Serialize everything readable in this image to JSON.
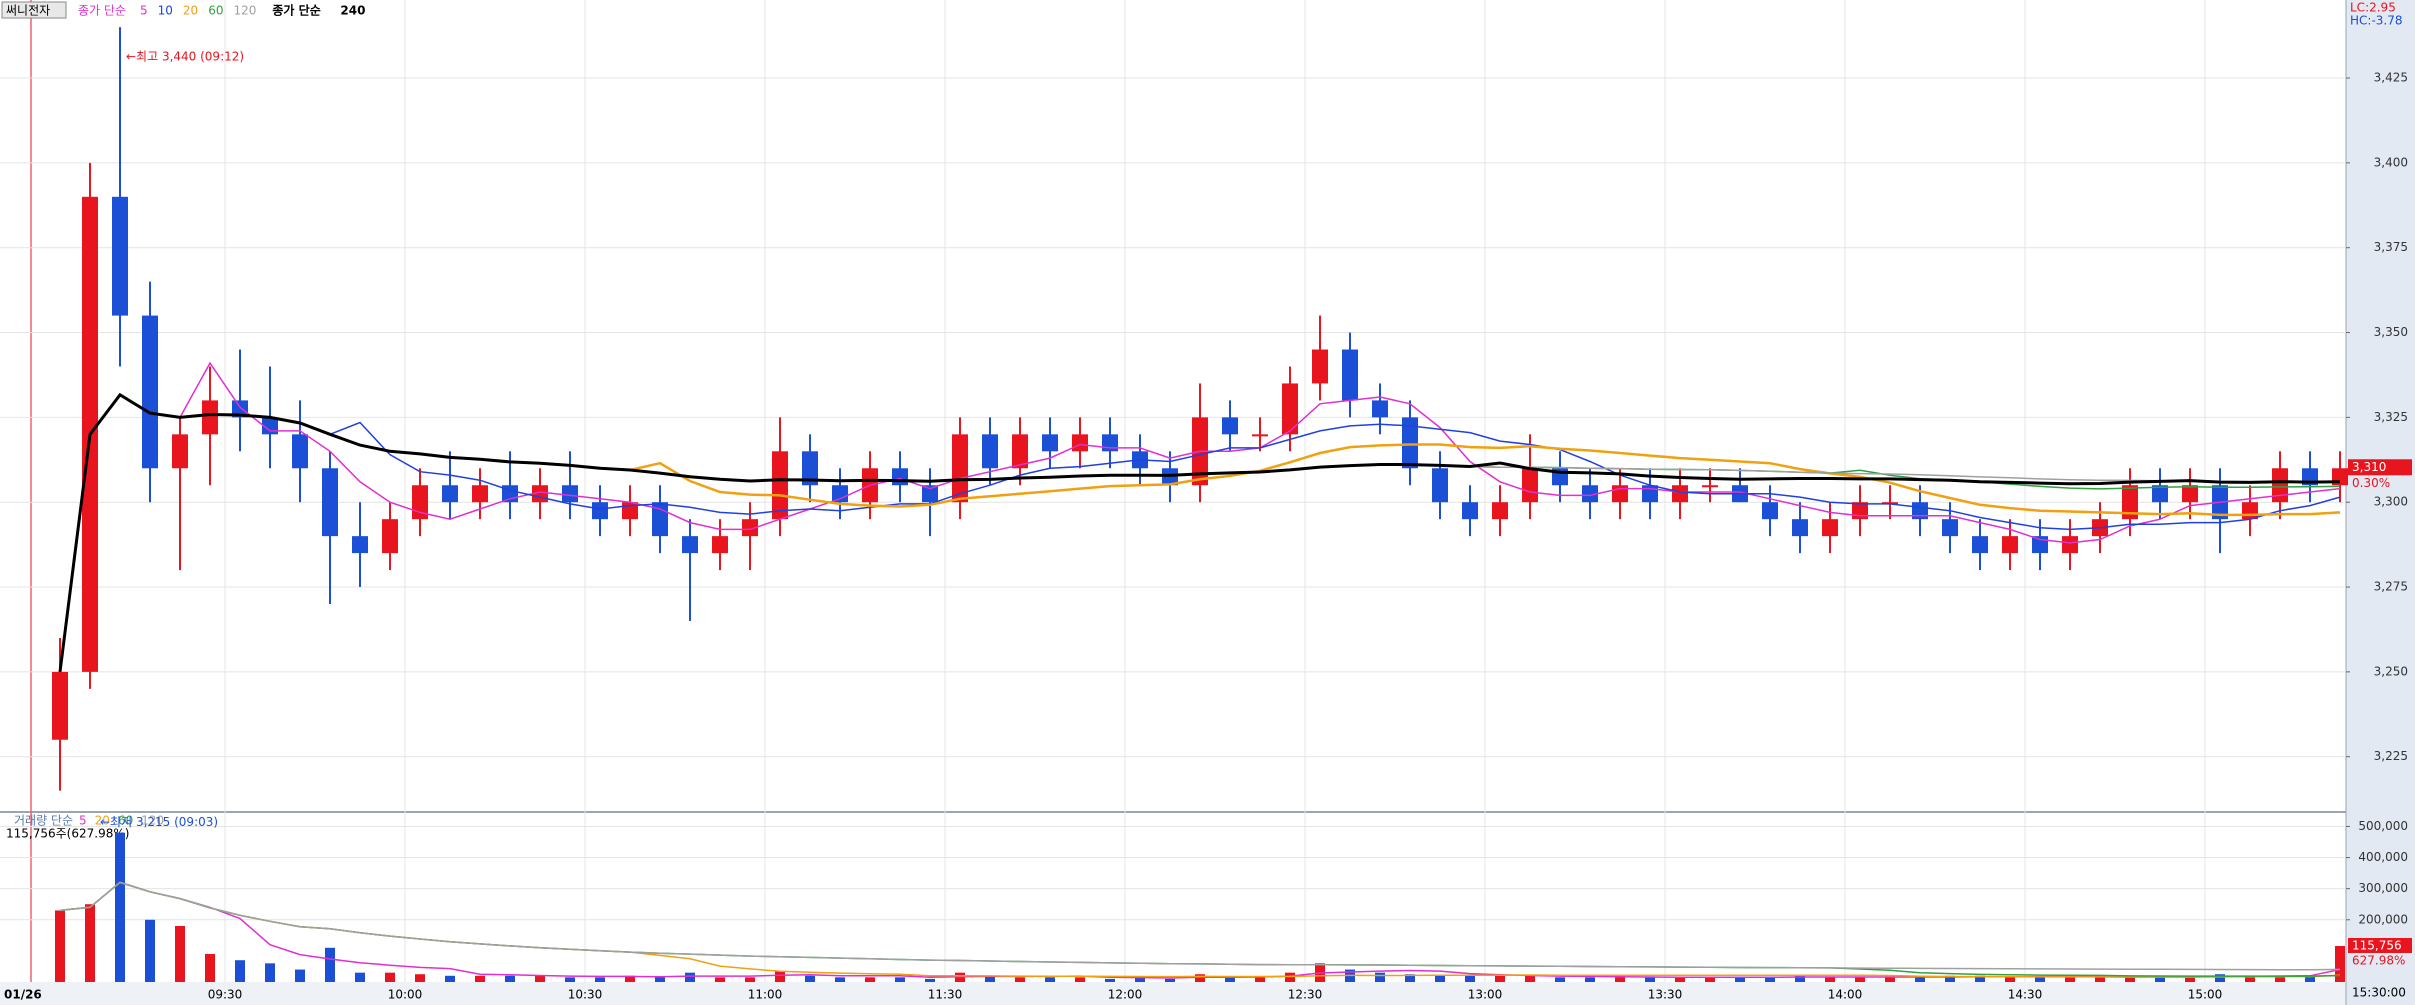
{
  "chart_data": {
    "type": "candlestick",
    "title": "써니전자",
    "date": "01/26",
    "categories": [
      "09:00",
      "09:05",
      "09:10",
      "09:15",
      "09:20",
      "09:25",
      "09:30",
      "09:35",
      "09:40",
      "09:45",
      "09:50",
      "09:55",
      "10:00",
      "10:05",
      "10:10",
      "10:15",
      "10:20",
      "10:25",
      "10:30",
      "10:35",
      "10:40",
      "10:45",
      "10:50",
      "10:55",
      "11:00",
      "11:05",
      "11:10",
      "11:15",
      "11:20",
      "11:25",
      "11:30",
      "11:35",
      "11:40",
      "11:45",
      "11:50",
      "11:55",
      "12:00",
      "12:05",
      "12:10",
      "12:15",
      "12:20",
      "12:25",
      "12:30",
      "12:35",
      "12:40",
      "12:45",
      "12:50",
      "12:55",
      "13:00",
      "13:05",
      "13:10",
      "13:15",
      "13:20",
      "13:25",
      "13:30",
      "13:35",
      "13:40",
      "13:45",
      "13:50",
      "13:55",
      "14:00",
      "14:05",
      "14:10",
      "14:15",
      "14:20",
      "14:25",
      "14:30",
      "14:35",
      "14:40",
      "14:45",
      "14:50",
      "14:55",
      "15:00",
      "15:05",
      "15:10",
      "15:15",
      "15:20"
    ],
    "open": [
      3230,
      3250,
      3390,
      3355,
      3310,
      3320,
      3330,
      3325,
      3320,
      3310,
      3290,
      3285,
      3295,
      3305,
      3300,
      3305,
      3300,
      3305,
      3300,
      3295,
      3300,
      3290,
      3285,
      3290,
      3295,
      3315,
      3305,
      3300,
      3310,
      3305,
      3300,
      3320,
      3310,
      3320,
      3315,
      3320,
      3315,
      3310,
      3305,
      3325,
      3320,
      3320,
      3335,
      3345,
      3330,
      3325,
      3310,
      3300,
      3295,
      3300,
      3310,
      3305,
      3300,
      3305,
      3300,
      3305,
      3305,
      3300,
      3295,
      3290,
      3295,
      3300,
      3300,
      3295,
      3290,
      3285,
      3290,
      3285,
      3290,
      3295,
      3305,
      3300,
      3305,
      3295,
      3300,
      3310,
      3305
    ],
    "high": [
      3260,
      3400,
      3440,
      3365,
      3325,
      3340,
      3345,
      3340,
      3330,
      3315,
      3300,
      3300,
      3310,
      3315,
      3310,
      3315,
      3310,
      3315,
      3305,
      3305,
      3305,
      3295,
      3295,
      3300,
      3325,
      3320,
      3310,
      3315,
      3315,
      3310,
      3325,
      3325,
      3325,
      3325,
      3325,
      3325,
      3320,
      3315,
      3335,
      3330,
      3325,
      3340,
      3355,
      3350,
      3335,
      3330,
      3315,
      3305,
      3305,
      3320,
      3315,
      3310,
      3310,
      3310,
      3310,
      3310,
      3310,
      3305,
      3300,
      3300,
      3305,
      3305,
      3305,
      3300,
      3295,
      3295,
      3295,
      3295,
      3300,
      3310,
      3310,
      3310,
      3310,
      3305,
      3315,
      3315,
      3315
    ],
    "low": [
      3215,
      3245,
      3340,
      3300,
      3280,
      3305,
      3315,
      3310,
      3300,
      3270,
      3275,
      3280,
      3290,
      3295,
      3295,
      3295,
      3295,
      3295,
      3290,
      3290,
      3285,
      3265,
      3280,
      3280,
      3290,
      3300,
      3295,
      3295,
      3300,
      3290,
      3295,
      3305,
      3305,
      3310,
      3310,
      3310,
      3305,
      3300,
      3300,
      3315,
      3315,
      3315,
      3330,
      3325,
      3320,
      3305,
      3295,
      3290,
      3290,
      3295,
      3300,
      3295,
      3295,
      3295,
      3295,
      3300,
      3300,
      3290,
      3285,
      3285,
      3290,
      3295,
      3290,
      3285,
      3280,
      3280,
      3280,
      3280,
      3285,
      3290,
      3295,
      3295,
      3285,
      3290,
      3295,
      3300,
      3300
    ],
    "close": [
      3250,
      3390,
      3355,
      3310,
      3320,
      3330,
      3325,
      3320,
      3310,
      3290,
      3285,
      3295,
      3305,
      3300,
      3305,
      3300,
      3305,
      3300,
      3295,
      3300,
      3290,
      3285,
      3290,
      3295,
      3315,
      3305,
      3300,
      3310,
      3305,
      3300,
      3320,
      3310,
      3320,
      3315,
      3320,
      3315,
      3310,
      3305,
      3325,
      3320,
      3320,
      3335,
      3345,
      3330,
      3325,
      3310,
      3300,
      3295,
      3300,
      3310,
      3305,
      3300,
      3305,
      3300,
      3305,
      3305,
      3300,
      3295,
      3290,
      3295,
      3300,
      3300,
      3295,
      3290,
      3285,
      3290,
      3285,
      3290,
      3295,
      3305,
      3300,
      3305,
      3295,
      3300,
      3310,
      3305,
      3310
    ],
    "up_color": "#e8141e",
    "down_color": "#1a4fd6",
    "ylim": [
      3209,
      3448
    ],
    "yticks": [
      {
        "value": 3225,
        "label": "3,225"
      },
      {
        "value": 3250,
        "label": "3,250"
      },
      {
        "value": 3275,
        "label": "3,275"
      },
      {
        "value": 3300,
        "label": "3,300"
      },
      {
        "value": 3325,
        "label": "3,325"
      },
      {
        "value": 3350,
        "label": "3,350"
      },
      {
        "value": 3375,
        "label": "3,375"
      },
      {
        "value": 3400,
        "label": "3,400"
      },
      {
        "value": 3425,
        "label": "3,425"
      }
    ],
    "grid": true,
    "moving_averages": {
      "label": "종가 단순",
      "periods": [
        5,
        10,
        20,
        60,
        120
      ],
      "colors": [
        "#e030d0",
        "#2040e0",
        "#f0a010",
        "#30a040",
        "#a0a0a0"
      ],
      "long": {
        "label": "종가 단순",
        "period": 240,
        "color": "#000000"
      }
    },
    "high_note": {
      "value": 3440,
      "label": "←최고 3,440 (09:12)"
    },
    "low_note": {
      "value": 3215,
      "label": "←최저 3,215 (09:03)"
    },
    "last_price": {
      "value": 3310,
      "label": "3,310"
    },
    "change_label": "0.30%",
    "lc_label": "LC:2.95",
    "hc_label": "HC:-3.78",
    "end_time": "15:30:00",
    "volume": {
      "title": "거래량 단순",
      "values": [
        230000,
        250000,
        480000,
        200000,
        180000,
        90000,
        70000,
        60000,
        40000,
        110000,
        30000,
        30000,
        25000,
        20000,
        20000,
        20000,
        20000,
        15000,
        15000,
        20000,
        15000,
        30000,
        15000,
        15000,
        35000,
        20000,
        15000,
        15000,
        15000,
        10000,
        30000,
        20000,
        15000,
        15000,
        15000,
        10000,
        15000,
        10000,
        25000,
        15000,
        15000,
        30000,
        60000,
        40000,
        30000,
        25000,
        20000,
        20000,
        20000,
        20000,
        15000,
        15000,
        15000,
        15000,
        15000,
        15000,
        15000,
        15000,
        20000,
        15000,
        15000,
        15000,
        15000,
        20000,
        20000,
        15000,
        15000,
        20000,
        15000,
        15000,
        15000,
        15000,
        25000,
        20000,
        20000,
        20000,
        115756
      ],
      "ylim": [
        0,
        540000
      ],
      "yticks": [
        {
          "value": 200000,
          "label": "200,000"
        },
        {
          "value": 300000,
          "label": "300,000"
        },
        {
          "value": 400000,
          "label": "400,000"
        },
        {
          "value": 500000,
          "label": "500,000"
        }
      ],
      "ma_periods": [
        5,
        20,
        60,
        120
      ],
      "ma_colors": [
        "#e030d0",
        "#f0a010",
        "#30a040",
        "#a0a0a0"
      ],
      "summary": "115,756주(627.98%)",
      "last": {
        "value": 115756,
        "label": "115,756"
      },
      "ratio_label": "627.98%"
    }
  }
}
